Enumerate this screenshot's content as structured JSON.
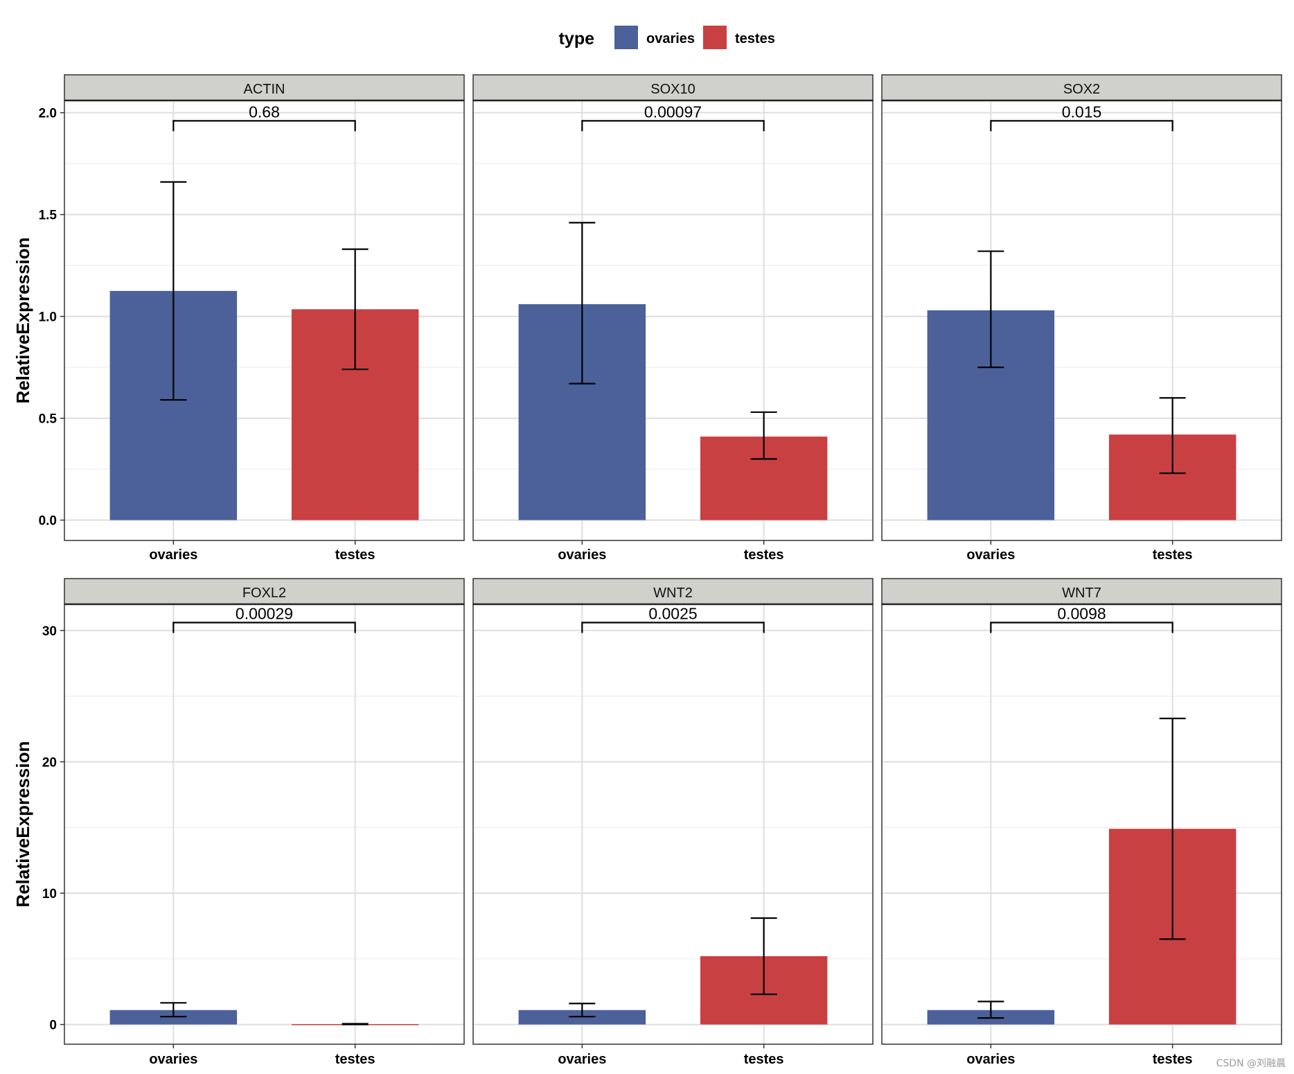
{
  "legend": {
    "title": "type",
    "items": [
      {
        "label": "ovaries",
        "color": "#4c6199"
      },
      {
        "label": "testes",
        "color": "#c94043"
      }
    ]
  },
  "watermark": "CSDN @刘融晨",
  "chart_data": {
    "type": "bar",
    "layout": "facet 2x3, shared y per row",
    "ylabel": "RelativeExpression",
    "categories": [
      "ovaries",
      "testes"
    ],
    "rows": [
      {
        "ylim": [
          -0.1,
          2.06
        ],
        "yticks": [
          0.0,
          0.5,
          1.0,
          1.5,
          2.0
        ],
        "tick_decimals": 1,
        "minor_step": 0.25
      },
      {
        "ylim": [
          -1.5,
          32.0
        ],
        "yticks": [
          0,
          10,
          20,
          30
        ],
        "tick_decimals": 0,
        "minor_step": 5
      }
    ],
    "panels": [
      {
        "title": "ACTIN",
        "row": 0,
        "col": 0,
        "pvalue": "0.68",
        "bracket_y": 1.96,
        "series": [
          {
            "name": "ovaries",
            "value": 1.125,
            "err_low": 0.59,
            "err_high": 1.66
          },
          {
            "name": "testes",
            "value": 1.035,
            "err_low": 0.74,
            "err_high": 1.33
          }
        ]
      },
      {
        "title": "SOX10",
        "row": 0,
        "col": 1,
        "pvalue": "0.00097",
        "bracket_y": 1.96,
        "series": [
          {
            "name": "ovaries",
            "value": 1.06,
            "err_low": 0.67,
            "err_high": 1.46
          },
          {
            "name": "testes",
            "value": 0.41,
            "err_low": 0.3,
            "err_high": 0.53
          }
        ]
      },
      {
        "title": "SOX2",
        "row": 0,
        "col": 2,
        "pvalue": "0.015",
        "bracket_y": 1.96,
        "series": [
          {
            "name": "ovaries",
            "value": 1.03,
            "err_low": 0.75,
            "err_high": 1.32
          },
          {
            "name": "testes",
            "value": 0.42,
            "err_low": 0.23,
            "err_high": 0.6
          }
        ]
      },
      {
        "title": "FOXL2",
        "row": 1,
        "col": 0,
        "pvalue": "0.00029",
        "bracket_y": 30.6,
        "series": [
          {
            "name": "ovaries",
            "value": 1.1,
            "err_low": 0.6,
            "err_high": 1.65
          },
          {
            "name": "testes",
            "value": 0.03,
            "err_low": 0.0,
            "err_high": 0.06
          }
        ]
      },
      {
        "title": "WNT2",
        "row": 1,
        "col": 1,
        "pvalue": "0.0025",
        "bracket_y": 30.6,
        "series": [
          {
            "name": "ovaries",
            "value": 1.1,
            "err_low": 0.6,
            "err_high": 1.6
          },
          {
            "name": "testes",
            "value": 5.2,
            "err_low": 2.3,
            "err_high": 8.1
          }
        ]
      },
      {
        "title": "WNT7",
        "row": 1,
        "col": 2,
        "pvalue": "0.0098",
        "bracket_y": 30.6,
        "series": [
          {
            "name": "ovaries",
            "value": 1.1,
            "err_low": 0.5,
            "err_high": 1.75
          },
          {
            "name": "testes",
            "value": 14.9,
            "err_low": 6.5,
            "err_high": 23.3
          }
        ]
      }
    ]
  }
}
